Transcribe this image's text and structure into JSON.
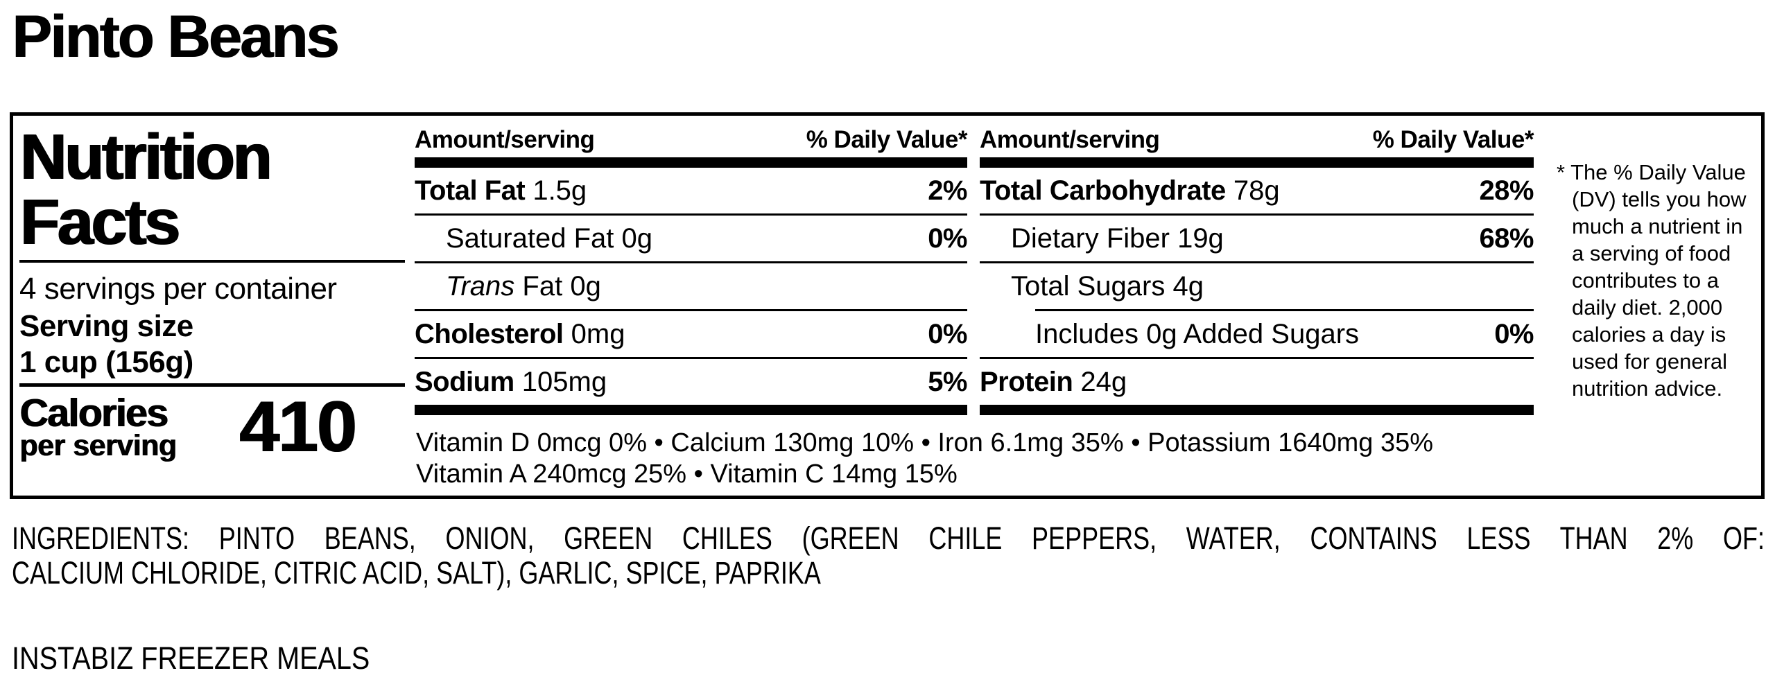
{
  "page": {
    "title": "Pinto Beans",
    "brand_line": "INSTABIZ FREEZER MEALS"
  },
  "panel": {
    "title_line1": "Nutrition",
    "title_line2": "Facts",
    "servings_per_container": "4 servings per container",
    "serving_size_label": "Serving size",
    "serving_size_value": "1 cup (156g)",
    "calories_label": "Calories",
    "calories_sublabel": "per serving",
    "calories_value": "410",
    "columns": [
      {
        "header_amount": "Amount/serving",
        "header_dv": "% Daily Value*",
        "rows": [
          {
            "name": "Total Fat",
            "amount": "1.5g",
            "dv": "2%",
            "bold": true,
            "indent": 0
          },
          {
            "name": "Saturated Fat",
            "amount": "0g",
            "dv": "0%",
            "bold": false,
            "indent": 1
          },
          {
            "name_italic": "Trans",
            "name": "Fat",
            "amount": "0g",
            "dv": "",
            "bold": false,
            "indent": 1
          },
          {
            "name": "Cholesterol",
            "amount": "0mg",
            "dv": "0%",
            "bold": true,
            "indent": 0
          },
          {
            "name": "Sodium",
            "amount": "105mg",
            "dv": "5%",
            "bold": true,
            "indent": 0
          }
        ]
      },
      {
        "header_amount": "Amount/serving",
        "header_dv": "% Daily Value*",
        "rows": [
          {
            "name": "Total Carbohydrate",
            "amount": "78g",
            "dv": "28%",
            "bold": true,
            "indent": 0
          },
          {
            "name": "Dietary Fiber",
            "amount": "19g",
            "dv": "68%",
            "bold": false,
            "indent": 1
          },
          {
            "name": "Total Sugars",
            "amount": "4g",
            "dv": "",
            "bold": false,
            "indent": 1,
            "divider_indent": 80
          },
          {
            "name": "Includes 0g Added Sugars",
            "amount": "",
            "dv": "0%",
            "bold": false,
            "indent": 2
          },
          {
            "name": "Protein",
            "amount": "24g",
            "dv": "",
            "bold": true,
            "indent": 0
          }
        ]
      }
    ],
    "vitamins_line1": "Vitamin D 0mcg 0% • Calcium 130mg 10% • Iron 6.1mg 35% • Potassium 1640mg 35%",
    "vitamins_line2": "Vitamin A 240mcg 25% • Vitamin C 14mg 15%",
    "footnote_lines": [
      "* The % Daily Value",
      "(DV) tells you how",
      "much a nutrient in",
      "a serving of food",
      "contributes to a",
      "daily diet. 2,000",
      "calories a day is",
      "used for general",
      "nutrition advice."
    ]
  },
  "ingredients": {
    "lines": [
      "INGREDIENTS: PINTO BEANS, ONION, GREEN CHILES (GREEN CHILE PEPPERS, WATER, CONTAINS LESS THAN 2% OF:",
      "CALCIUM CHLORIDE, CITRIC ACID, SALT), GARLIC, SPICE, PAPRIKA"
    ]
  }
}
